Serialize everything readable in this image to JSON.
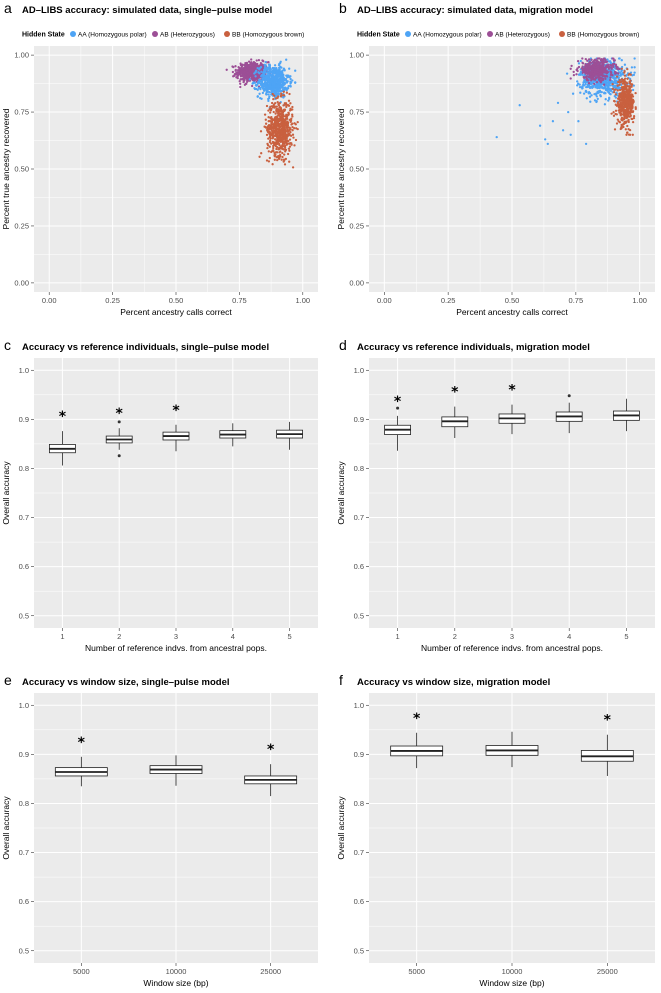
{
  "colors": {
    "panel_bg": "#ebebeb",
    "grid": "#ffffff",
    "AA": "#4ea4f5",
    "AB": "#9c4f96",
    "BB": "#c9603f",
    "box_fill": "#ffffff",
    "box_line": "#222222",
    "outlier": "#333333"
  },
  "chart_data": [
    {
      "id": "a",
      "letter": "a",
      "type": "scatter",
      "title": "AD–LIBS accuracy: simulated data, single–pulse model",
      "xlabel": "Percent ancestry calls correct",
      "ylabel": "Percent true ancestry recovered",
      "xlim": [
        -0.06,
        1.06
      ],
      "ylim": [
        -0.04,
        1.04
      ],
      "xticks": [
        0.0,
        0.25,
        0.5,
        0.75,
        1.0
      ],
      "xticklabels": [
        "0.00",
        "0.25",
        "0.50",
        "0.75",
        "1.00"
      ],
      "yticks": [
        0.0,
        0.25,
        0.5,
        0.75,
        1.0
      ],
      "yticklabels": [
        "0.00",
        "0.25",
        "0.50",
        "0.75",
        "1.00"
      ],
      "legend": {
        "title": "Hidden State",
        "position": "top",
        "entries": [
          {
            "key": "AA",
            "label": "AA (Homozygous polar)"
          },
          {
            "key": "AB",
            "label": "AB (Heterozygous)"
          },
          {
            "key": "BB",
            "label": "BB (Homozygous brown)"
          }
        ]
      },
      "series": [
        {
          "name": "AB",
          "color_key": "AB",
          "n": 520,
          "x_mean": 0.8,
          "x_sd": 0.03,
          "y_mean": 0.925,
          "y_sd": 0.022,
          "x_range": [
            0.7,
            0.89
          ],
          "y_range": [
            0.86,
            0.985
          ],
          "outliers": []
        },
        {
          "name": "AA",
          "color_key": "AA",
          "n": 620,
          "x_mean": 0.885,
          "x_sd": 0.03,
          "y_mean": 0.885,
          "y_sd": 0.035,
          "x_range": [
            0.78,
            0.97
          ],
          "y_range": [
            0.77,
            0.98
          ],
          "outliers": []
        },
        {
          "name": "BB",
          "color_key": "BB",
          "n": 620,
          "x_mean": 0.91,
          "x_sd": 0.025,
          "y_mean": 0.68,
          "y_sd": 0.06,
          "x_range": [
            0.82,
            0.98
          ],
          "y_range": [
            0.48,
            0.84
          ],
          "outliers": []
        }
      ]
    },
    {
      "id": "b",
      "letter": "b",
      "type": "scatter",
      "title": "AD–LIBS accuracy: simulated data, migration model",
      "xlabel": "Percent ancestry calls correct",
      "ylabel": "Percent true ancestry recovered",
      "xlim": [
        -0.06,
        1.06
      ],
      "ylim": [
        -0.04,
        1.04
      ],
      "xticks": [
        0.0,
        0.25,
        0.5,
        0.75,
        1.0
      ],
      "xticklabels": [
        "0.00",
        "0.25",
        "0.50",
        "0.75",
        "1.00"
      ],
      "yticks": [
        0.0,
        0.25,
        0.5,
        0.75,
        1.0
      ],
      "yticklabels": [
        "0.00",
        "0.25",
        "0.50",
        "0.75",
        "1.00"
      ],
      "legend": {
        "title": "Hidden State",
        "position": "top",
        "entries": [
          {
            "key": "AA",
            "label": "AA (Homozygous polar)"
          },
          {
            "key": "AB",
            "label": "AB (Heterozygous)"
          },
          {
            "key": "BB",
            "label": "BB (Homozygous brown)"
          }
        ]
      },
      "series": [
        {
          "name": "AA",
          "color_key": "AA",
          "n": 700,
          "x_mean": 0.86,
          "x_sd": 0.045,
          "y_mean": 0.9,
          "y_sd": 0.04,
          "x_range": [
            0.7,
            0.98
          ],
          "y_range": [
            0.74,
            0.985
          ],
          "outliers": [
            [
              0.44,
              0.64
            ],
            [
              0.53,
              0.78
            ],
            [
              0.61,
              0.69
            ],
            [
              0.63,
              0.63
            ],
            [
              0.64,
              0.61
            ],
            [
              0.66,
              0.71
            ],
            [
              0.7,
              0.67
            ],
            [
              0.73,
              0.65
            ],
            [
              0.76,
              0.71
            ],
            [
              0.79,
              0.61
            ],
            [
              0.72,
              0.75
            ],
            [
              0.68,
              0.79
            ]
          ]
        },
        {
          "name": "AB",
          "color_key": "AB",
          "n": 420,
          "x_mean": 0.83,
          "x_sd": 0.035,
          "y_mean": 0.935,
          "y_sd": 0.022,
          "x_range": [
            0.73,
            0.92
          ],
          "y_range": [
            0.87,
            0.985
          ],
          "outliers": []
        },
        {
          "name": "BB",
          "color_key": "BB",
          "n": 460,
          "x_mean": 0.945,
          "x_sd": 0.017,
          "y_mean": 0.79,
          "y_sd": 0.05,
          "x_range": [
            0.89,
            0.985
          ],
          "y_range": [
            0.65,
            0.95
          ],
          "outliers": []
        }
      ]
    },
    {
      "id": "c",
      "letter": "c",
      "type": "box",
      "title": "Accuracy vs reference individuals, single–pulse model",
      "xlabel": "Number of reference indvs. from ancestral pops.",
      "ylabel": "Overall accuracy",
      "ylim": [
        0.475,
        1.025
      ],
      "yticks": [
        0.5,
        0.6,
        0.7,
        0.8,
        0.9,
        1.0
      ],
      "yticklabels": [
        "0.5",
        "0.6",
        "0.7",
        "0.8",
        "0.9",
        "1.0"
      ],
      "categories": [
        "1",
        "2",
        "3",
        "4",
        "5"
      ],
      "boxes": [
        {
          "min": 0.806,
          "q1": 0.832,
          "median": 0.84,
          "q3": 0.849,
          "max": 0.876,
          "outliers": [],
          "star": "*"
        },
        {
          "min": 0.838,
          "q1": 0.852,
          "median": 0.859,
          "q3": 0.866,
          "max": 0.882,
          "outliers": [
            0.895,
            0.826
          ],
          "star": "*"
        },
        {
          "min": 0.835,
          "q1": 0.858,
          "median": 0.866,
          "q3": 0.874,
          "max": 0.889,
          "outliers": [],
          "star": "*"
        },
        {
          "min": 0.845,
          "q1": 0.862,
          "median": 0.869,
          "q3": 0.877,
          "max": 0.892,
          "outliers": [],
          "star": ""
        },
        {
          "min": 0.838,
          "q1": 0.862,
          "median": 0.87,
          "q3": 0.878,
          "max": 0.895,
          "outliers": [],
          "star": ""
        }
      ]
    },
    {
      "id": "d",
      "letter": "d",
      "type": "box",
      "title": "Accuracy vs reference individuals, migration model",
      "xlabel": "Number of reference indvs. from ancestral pops.",
      "ylabel": "Overall accuracy",
      "ylim": [
        0.475,
        1.025
      ],
      "yticks": [
        0.5,
        0.6,
        0.7,
        0.8,
        0.9,
        1.0
      ],
      "yticklabels": [
        "0.5",
        "0.6",
        "0.7",
        "0.8",
        "0.9",
        "1.0"
      ],
      "categories": [
        "1",
        "2",
        "3",
        "4",
        "5"
      ],
      "boxes": [
        {
          "min": 0.836,
          "q1": 0.869,
          "median": 0.879,
          "q3": 0.888,
          "max": 0.907,
          "outliers": [
            0.923
          ],
          "star": "*"
        },
        {
          "min": 0.862,
          "q1": 0.885,
          "median": 0.896,
          "q3": 0.905,
          "max": 0.926,
          "outliers": [],
          "star": "*"
        },
        {
          "min": 0.87,
          "q1": 0.892,
          "median": 0.902,
          "q3": 0.911,
          "max": 0.93,
          "outliers": [],
          "star": "*"
        },
        {
          "min": 0.872,
          "q1": 0.896,
          "median": 0.906,
          "q3": 0.915,
          "max": 0.934,
          "outliers": [
            0.948
          ],
          "star": ""
        },
        {
          "min": 0.876,
          "q1": 0.898,
          "median": 0.908,
          "q3": 0.917,
          "max": 0.942,
          "outliers": [],
          "star": ""
        }
      ]
    },
    {
      "id": "e",
      "letter": "e",
      "type": "box",
      "title": "Accuracy vs window size, single–pulse model",
      "xlabel": "Window size (bp)",
      "ylabel": "Overall accuracy",
      "ylim": [
        0.475,
        1.025
      ],
      "yticks": [
        0.5,
        0.6,
        0.7,
        0.8,
        0.9,
        1.0
      ],
      "yticklabels": [
        "0.5",
        "0.6",
        "0.7",
        "0.8",
        "0.9",
        "1.0"
      ],
      "categories": [
        "5000",
        "10000",
        "25000"
      ],
      "boxes": [
        {
          "min": 0.835,
          "q1": 0.856,
          "median": 0.864,
          "q3": 0.873,
          "max": 0.895,
          "outliers": [],
          "star": "*"
        },
        {
          "min": 0.836,
          "q1": 0.861,
          "median": 0.869,
          "q3": 0.877,
          "max": 0.898,
          "outliers": [],
          "star": ""
        },
        {
          "min": 0.815,
          "q1": 0.84,
          "median": 0.848,
          "q3": 0.856,
          "max": 0.88,
          "outliers": [],
          "star": "*"
        }
      ]
    },
    {
      "id": "f",
      "letter": "f",
      "type": "box",
      "title": "Accuracy vs window size, migration model",
      "xlabel": "Window size (bp)",
      "ylabel": "Overall accuracy",
      "ylim": [
        0.475,
        1.025
      ],
      "yticks": [
        0.5,
        0.6,
        0.7,
        0.8,
        0.9,
        1.0
      ],
      "yticklabels": [
        "0.5",
        "0.6",
        "0.7",
        "0.8",
        "0.9",
        "1.0"
      ],
      "categories": [
        "5000",
        "10000",
        "25000"
      ],
      "boxes": [
        {
          "min": 0.872,
          "q1": 0.897,
          "median": 0.907,
          "q3": 0.917,
          "max": 0.944,
          "outliers": [],
          "star": "*"
        },
        {
          "min": 0.874,
          "q1": 0.898,
          "median": 0.908,
          "q3": 0.918,
          "max": 0.946,
          "outliers": [],
          "star": ""
        },
        {
          "min": 0.856,
          "q1": 0.886,
          "median": 0.896,
          "q3": 0.908,
          "max": 0.94,
          "outliers": [],
          "star": "*"
        }
      ]
    }
  ]
}
